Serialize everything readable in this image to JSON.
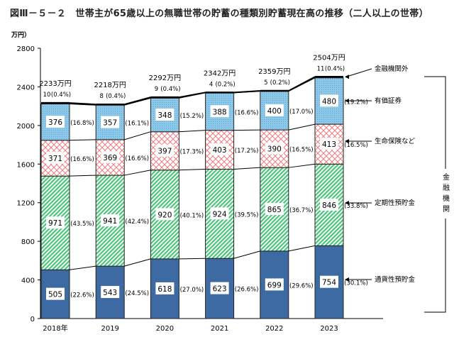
{
  "title": "図Ⅲ－５－２　世帯主が65歳以上の無職世帯の貯蓄の種類別貯蓄現在高の推移（二人以上の世帯）",
  "chart_data": {
    "type": "bar",
    "stacked": true,
    "title": "図Ⅲ－５－２　世帯主が65歳以上の無職世帯の貯蓄の種類別貯蓄現在高の推移（二人以上の世帯）",
    "ylabel": "万円）",
    "ylim": [
      0,
      2800
    ],
    "yticks": [
      0,
      400,
      800,
      1200,
      1600,
      2000,
      2400,
      2800
    ],
    "categories": [
      "2018年",
      "2019",
      "2020",
      "2021",
      "2022",
      "2023"
    ],
    "totals": [
      "2233万円",
      "2218万円",
      "2292万円",
      "2342万円",
      "2359万円",
      "2504万円"
    ],
    "series": [
      {
        "name": "通貨性預貯金",
        "color": "#3e6aa3",
        "values": [
          505,
          543,
          618,
          623,
          699,
          754
        ],
        "shares": [
          "(22.6%)",
          "(24.5%)",
          "(27.0%)",
          "(26.6%)",
          "(29.6%)",
          "(30.1%)"
        ]
      },
      {
        "name": "定期性預貯金",
        "color": "#4cc47a",
        "values": [
          971,
          941,
          920,
          924,
          865,
          846
        ],
        "shares": [
          "(43.5%)",
          "(42.4%)",
          "(40.1%)",
          "(39.5%)",
          "(36.7%)",
          "(33.8%)"
        ]
      },
      {
        "name": "生命保険など",
        "color": "#f07a80",
        "values": [
          371,
          369,
          397,
          403,
          390,
          413
        ],
        "shares": [
          "(16.6%)",
          "(16.6%)",
          "(17.3%)",
          "(17.2%)",
          "(16.5%)",
          "(16.5%)"
        ]
      },
      {
        "name": "有価証券",
        "color": "#8ec8e8",
        "values": [
          376,
          357,
          348,
          388,
          400,
          480
        ],
        "shares": [
          "(16.8%)",
          "(16.1%)",
          "(15.2%)",
          "(16.6%)",
          "(17.0%)",
          "(19.2%)"
        ]
      },
      {
        "name": "金融機関外",
        "color": "#000000",
        "values": [
          10,
          8,
          9,
          4,
          5,
          11
        ],
        "shares": [
          "(0.4%)",
          "(0.4%)",
          "(0.4%)",
          "(0.2%)",
          "(0.2%)",
          "(0.4%)"
        ]
      }
    ],
    "bracket_label": "金融機関",
    "grid": false
  }
}
